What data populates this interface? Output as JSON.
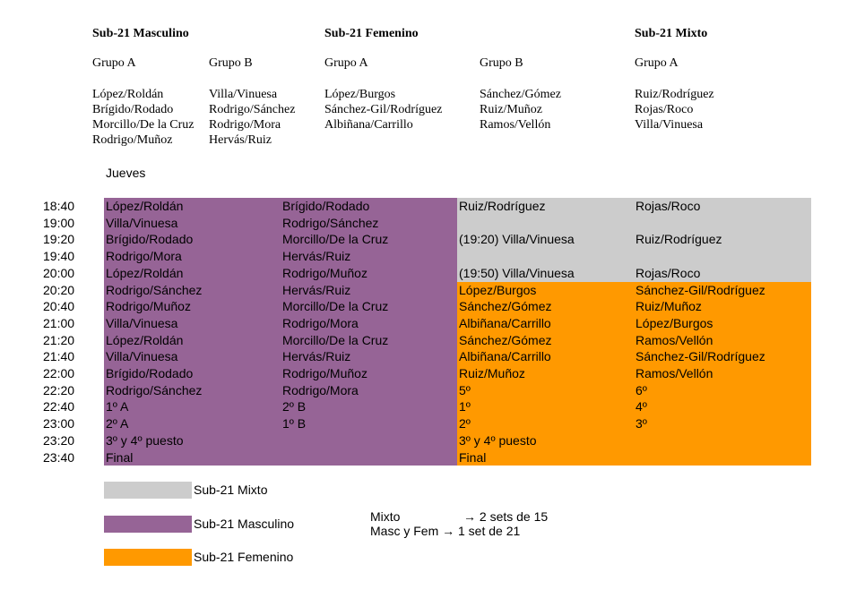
{
  "colors": {
    "mixto": "#cccccc",
    "masculino": "#966496",
    "femenino": "#ff9900"
  },
  "groups": {
    "masc_title": "Sub-21 Masculino",
    "fem_title": "Sub-21 Femenino",
    "mixto_title": "Sub-21 Mixto",
    "masc_a_label": "Grupo A",
    "masc_b_label": "Grupo B",
    "fem_a_label": "Grupo A",
    "fem_b_label": "Grupo B",
    "mixto_a_label": "Grupo A",
    "masc_a": [
      "López/Roldán",
      "Brígido/Rodado",
      "Morcillo/De la Cruz",
      "Rodrigo/Muñoz"
    ],
    "masc_b": [
      "Villa/Vinuesa",
      "Rodrigo/Sánchez",
      "Rodrigo/Mora",
      "Hervás/Ruiz"
    ],
    "fem_a": [
      "López/Burgos",
      "Sánchez-Gil/Rodríguez",
      "Albiñana/Carrillo"
    ],
    "fem_b": [
      "Sánchez/Gómez",
      "Ruiz/Muñoz",
      "Ramos/Vellón"
    ],
    "mixto_a": [
      "Ruiz/Rodríguez",
      "Rojas/Roco",
      "Villa/Vinuesa"
    ]
  },
  "schedule": {
    "day": "Jueves",
    "rows": [
      {
        "time": "18:40",
        "c1": "López/Roldán",
        "c2": "Brígido/Rodado",
        "c3": "Ruiz/Rodríguez",
        "c4": "Rojas/Roco"
      },
      {
        "time": "19:00",
        "c1": "Villa/Vinuesa",
        "c2": "Rodrigo/Sánchez",
        "c3": "",
        "c4": ""
      },
      {
        "time": "19:20",
        "c1": "Brígido/Rodado",
        "c2": "Morcillo/De la Cruz",
        "c3": "(19:20) Villa/Vinuesa",
        "c4": "Ruiz/Rodríguez"
      },
      {
        "time": "19:40",
        "c1": "Rodrigo/Mora",
        "c2": "Hervás/Ruiz",
        "c3": "",
        "c4": ""
      },
      {
        "time": "20:00",
        "c1": "López/Roldán",
        "c2": "Rodrigo/Muñoz",
        "c3": "(19:50) Villa/Vinuesa",
        "c4": "Rojas/Roco"
      },
      {
        "time": "20:20",
        "c1": "Rodrigo/Sánchez",
        "c2": "Hervás/Ruiz",
        "c3": "López/Burgos",
        "c4": "Sánchez-Gil/Rodríguez"
      },
      {
        "time": "20:40",
        "c1": "Rodrigo/Muñoz",
        "c2": "Morcillo/De la Cruz",
        "c3": "Sánchez/Gómez",
        "c4": "Ruiz/Muñoz"
      },
      {
        "time": "21:00",
        "c1": "Villa/Vinuesa",
        "c2": "Rodrigo/Mora",
        "c3": "Albiñana/Carrillo",
        "c4": "López/Burgos"
      },
      {
        "time": "21:20",
        "c1": "López/Roldán",
        "c2": "Morcillo/De la Cruz",
        "c3": "Sánchez/Gómez",
        "c4": "Ramos/Vellón"
      },
      {
        "time": "21:40",
        "c1": "Villa/Vinuesa",
        "c2": "Hervás/Ruiz",
        "c3": "Albiñana/Carrillo",
        "c4": "Sánchez-Gil/Rodríguez"
      },
      {
        "time": "22:00",
        "c1": "Brígido/Rodado",
        "c2": "Rodrigo/Muñoz",
        "c3": "Ruiz/Muñoz",
        "c4": "Ramos/Vellón"
      },
      {
        "time": "22:20",
        "c1": "Rodrigo/Sánchez",
        "c2": "Rodrigo/Mora",
        "c3": "5º",
        "c4": "6º"
      },
      {
        "time": "22:40",
        "c1": "1º A",
        "c2": "2º B",
        "c3": "1º",
        "c4": "4º"
      },
      {
        "time": "23:00",
        "c1": "2º A",
        "c2": "1º B",
        "c3": "2º",
        "c4": "3º"
      },
      {
        "time": "23:20",
        "c1": "3º y 4º puesto",
        "c2": "",
        "c3": "3º y 4º puesto",
        "c4": ""
      },
      {
        "time": "23:40",
        "c1": "Final",
        "c2": "",
        "c3": "Final",
        "c4": ""
      }
    ]
  },
  "legend": {
    "mixto": "Sub-21 Mixto",
    "masculino": "Sub-21 Masculino",
    "femenino": "Sub-21 Femenino"
  },
  "notes": {
    "line1_left": "Mixto",
    "line1_right": "→ 2 sets de 15",
    "line2": "Masc y  Fem → 1 set de 21"
  }
}
